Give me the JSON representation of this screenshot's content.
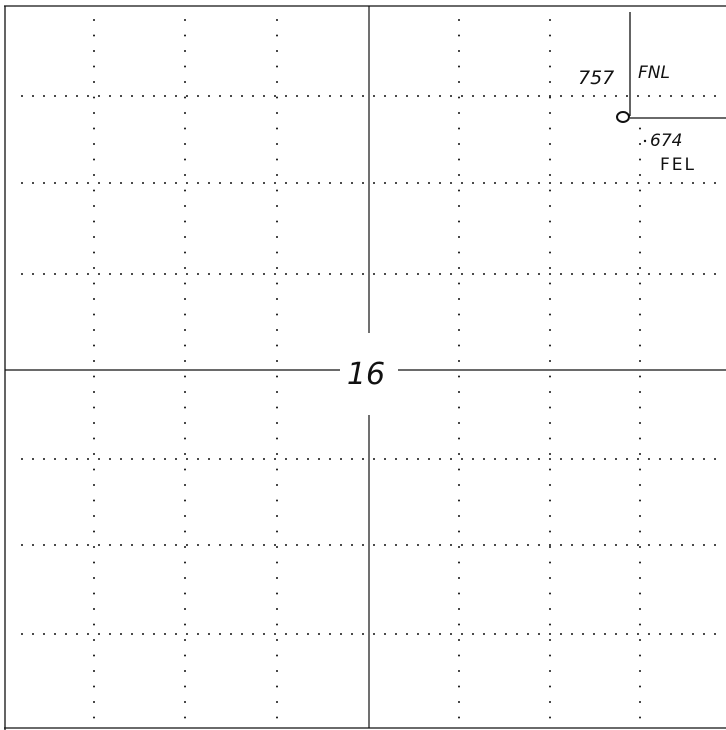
{
  "section": {
    "number": "16"
  },
  "well": {
    "north_offset_label": "757",
    "north_reference": "FNL",
    "east_offset_label": "674",
    "east_reference": "FEL"
  },
  "colors": {
    "ink": "#111111",
    "paper": "#ffffff"
  }
}
